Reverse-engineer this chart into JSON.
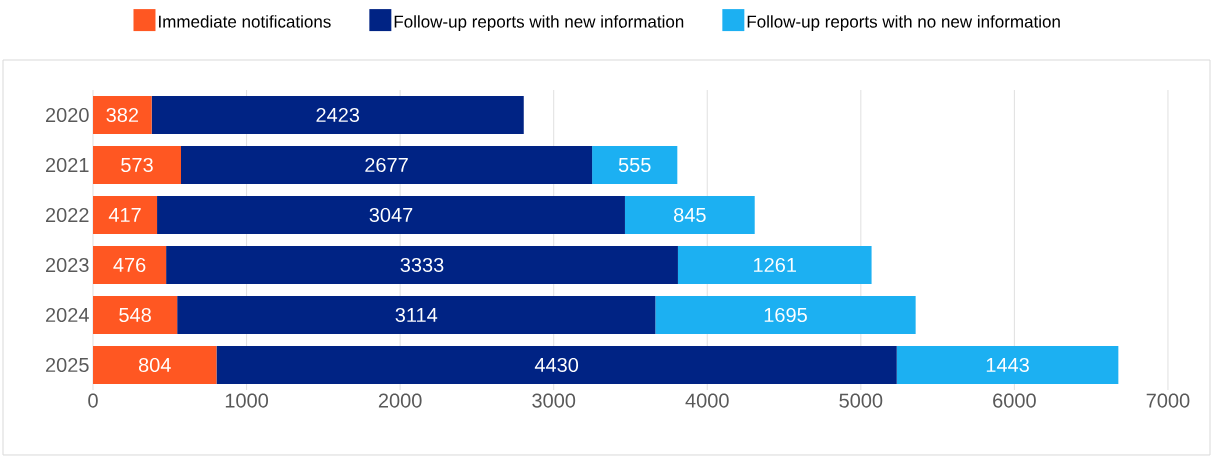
{
  "chart_data": {
    "type": "bar",
    "orientation": "horizontal",
    "stacked": true,
    "data_labels": true,
    "grid": "x",
    "legend": "top",
    "categories": [
      "2020",
      "2021",
      "2022",
      "2023",
      "2024",
      "2025"
    ],
    "xlim": [
      0,
      7000
    ],
    "xticks": [
      0,
      1000,
      2000,
      3000,
      4000,
      5000,
      6000,
      7000
    ],
    "series": [
      {
        "name": "Immediate notifications",
        "color": "#ff5722",
        "values": [
          382,
          573,
          417,
          476,
          548,
          804
        ]
      },
      {
        "name": "Follow-up reports with new information",
        "color": "#002384",
        "values": [
          2423,
          2677,
          3047,
          3333,
          3114,
          4430
        ]
      },
      {
        "name": "Follow-up reports with no new information",
        "color": "#1cb0f2",
        "values": [
          null,
          555,
          845,
          1261,
          1695,
          1443
        ]
      }
    ]
  }
}
